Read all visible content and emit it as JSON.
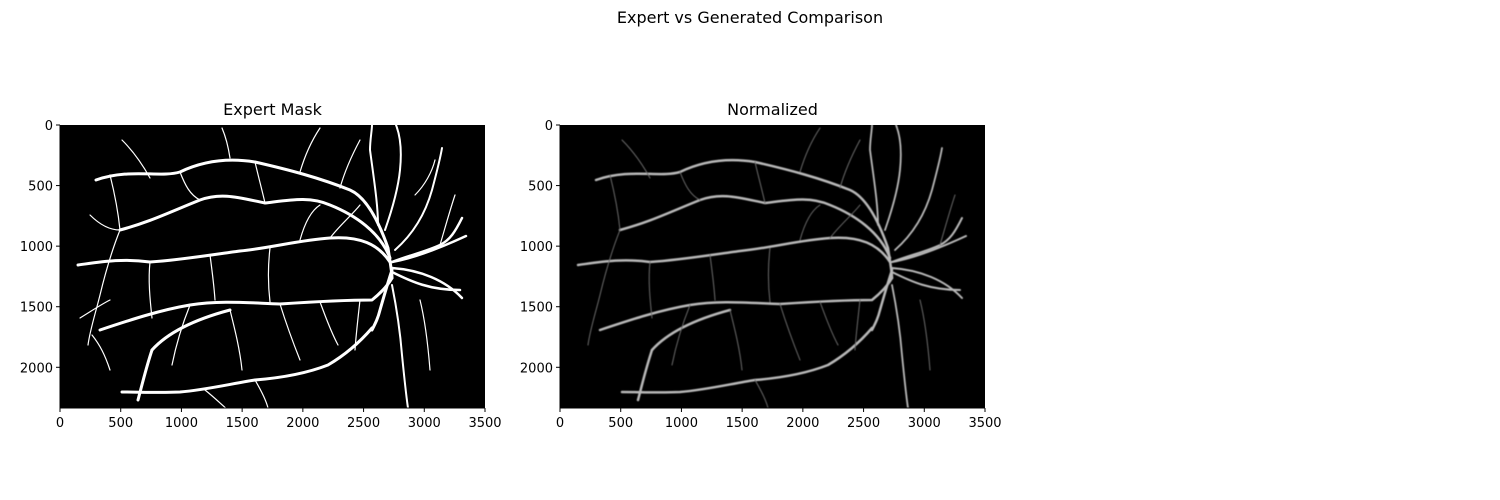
{
  "figure": {
    "title": "Expert vs Generated Comparison"
  },
  "panels": [
    {
      "title": "Expert Mask",
      "x_ticks": [
        "0",
        "500",
        "1000",
        "1500",
        "2000",
        "2500",
        "3000",
        "3500"
      ],
      "y_ticks": [
        "0",
        "500",
        "1000",
        "1500",
        "2000"
      ],
      "x_range": [
        0,
        3500
      ],
      "y_range": [
        0,
        2336
      ],
      "image": "binary-vessel-mask"
    },
    {
      "title": "Normalized",
      "x_ticks": [
        "0",
        "500",
        "1000",
        "1500",
        "2000",
        "2500",
        "3000",
        "3500"
      ],
      "y_ticks": [
        "0",
        "500",
        "1000",
        "1500",
        "2000"
      ],
      "x_range": [
        0,
        3500
      ],
      "y_range": [
        0,
        2336
      ],
      "image": "normalized-vessel-enhancement"
    }
  ],
  "colors": {
    "image_background": "#000000",
    "mask_vessel": "#ffffff",
    "normalized_vessel": "#b8b8b8"
  }
}
